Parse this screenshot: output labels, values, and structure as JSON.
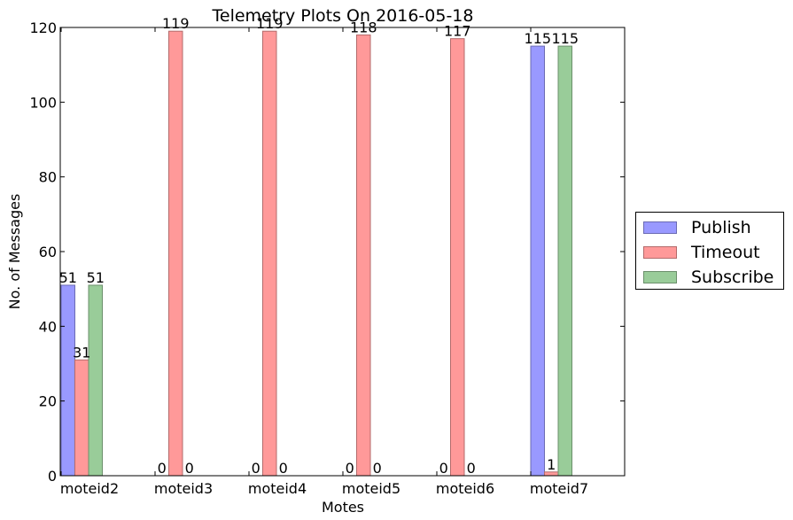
{
  "chart_data": {
    "type": "bar",
    "title": "Telemetry Plots On 2016-05-18",
    "xlabel": "Motes",
    "ylabel": "No. of Messages",
    "categories": [
      "moteid2",
      "moteid3",
      "moteid4",
      "moteid5",
      "moteid6",
      "moteid7"
    ],
    "series": [
      {
        "name": "Publish",
        "values": [
          51,
          0,
          0,
          0,
          0,
          115
        ],
        "color": "#9999ff",
        "edge": "#6b6bb3"
      },
      {
        "name": "Timeout",
        "values": [
          31,
          119,
          119,
          118,
          117,
          1
        ],
        "color": "#ff9999",
        "edge": "#b36b6b"
      },
      {
        "name": "Subscribe",
        "values": [
          51,
          0,
          0,
          0,
          0,
          115
        ],
        "color": "#99cc99",
        "edge": "#6b8f6b"
      }
    ],
    "ylim": [
      0,
      120
    ],
    "yticks": [
      "0",
      "20",
      "40",
      "60",
      "80",
      "100",
      "120"
    ],
    "grid": false,
    "legend_position": "outside-right"
  }
}
